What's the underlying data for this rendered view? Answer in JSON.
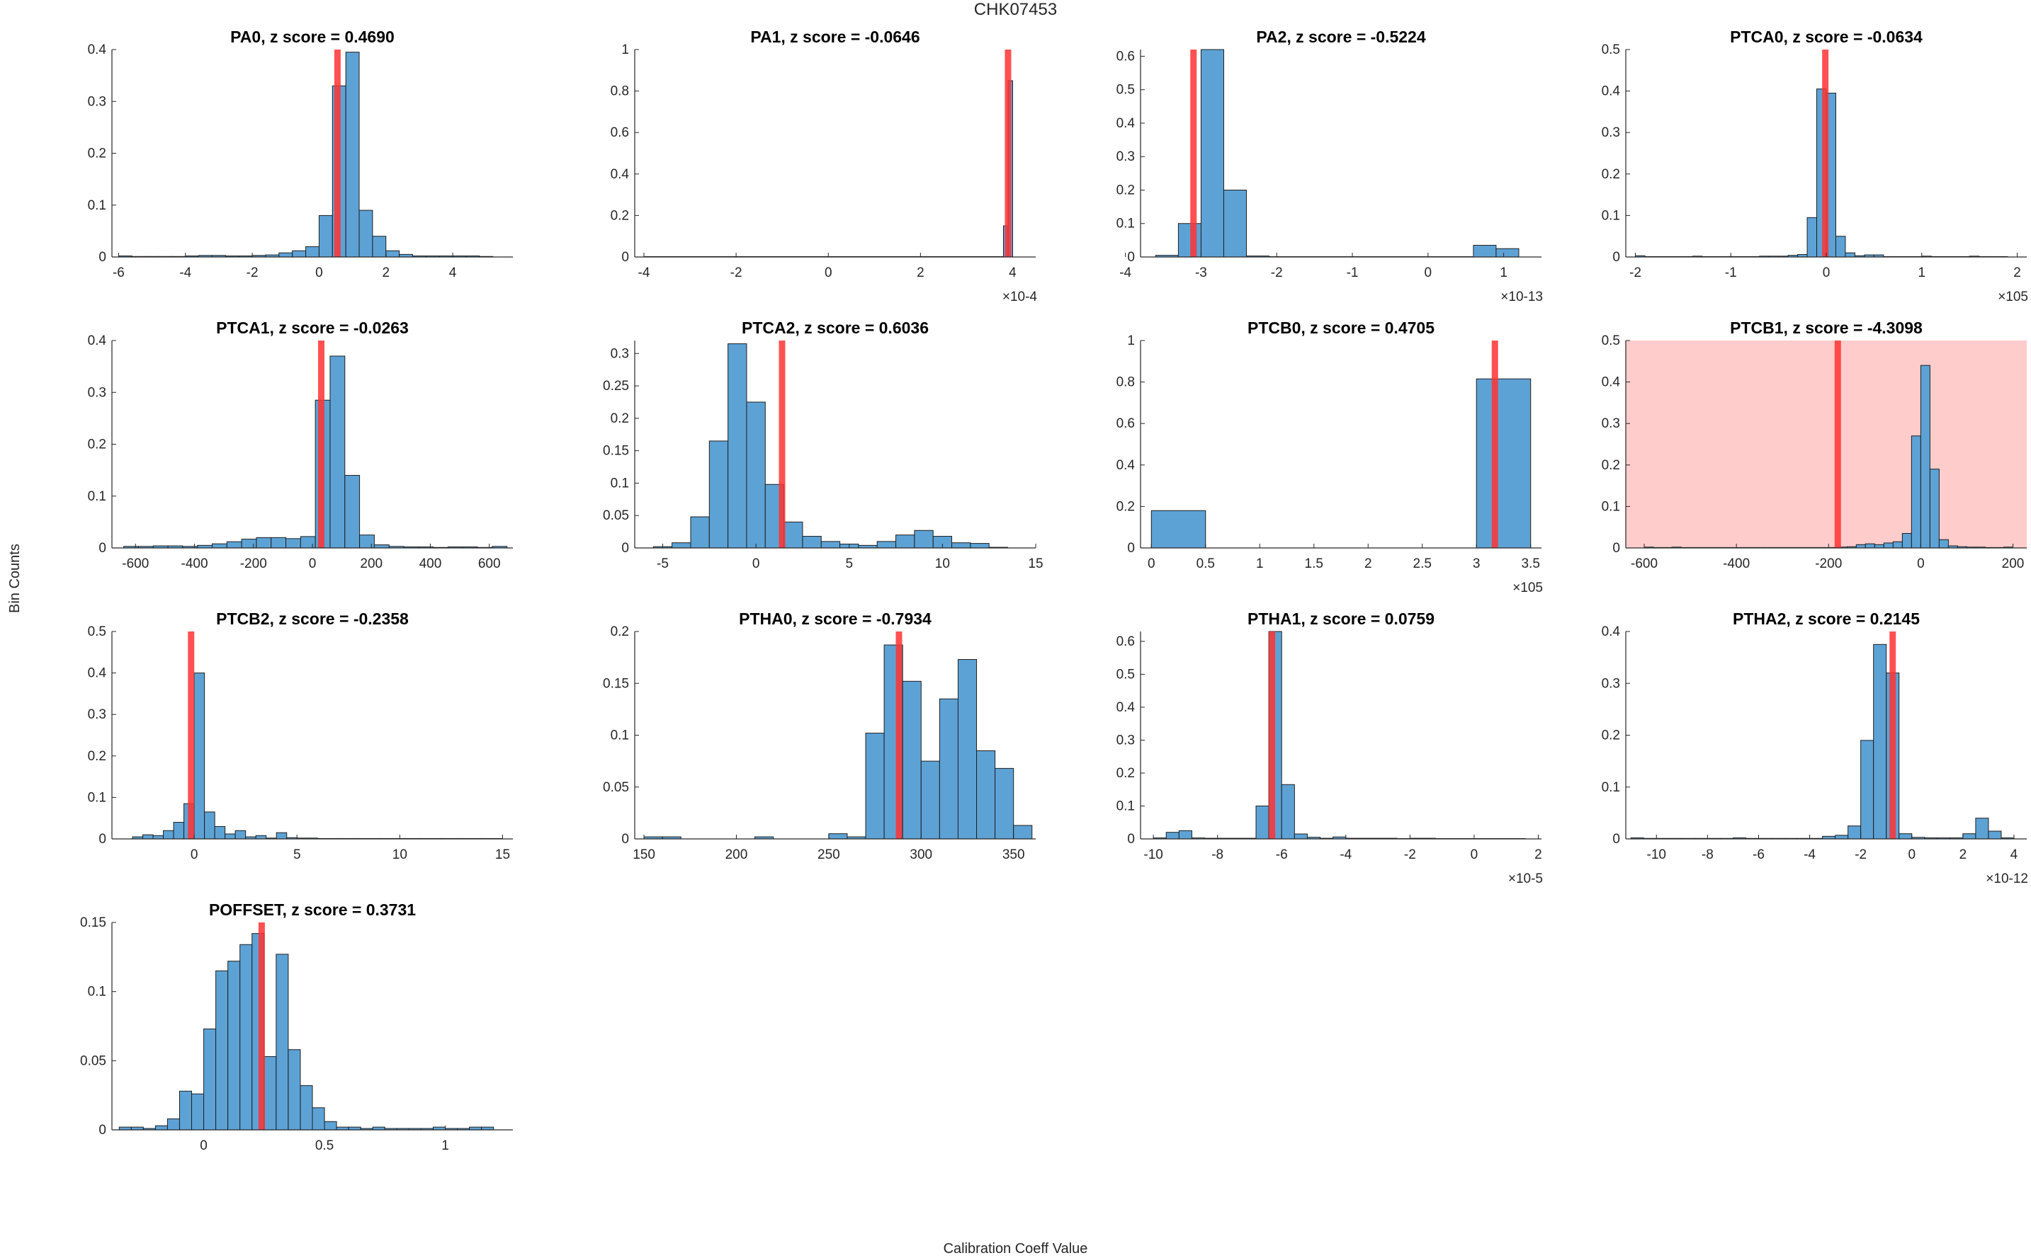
{
  "figure": {
    "title": "CHK07453",
    "xlabel": "Calibration Coeff Value",
    "ylabel": "Bin Counts"
  },
  "colors": {
    "bar_fill": "#5da2d5",
    "bar_edge": "#1f1f1f",
    "marker": "#ff3333",
    "flag_background": "#ffcccc",
    "axis": "#262626"
  },
  "chart_data": [
    {
      "type": "bar",
      "name": "PA0",
      "title": "PA0, z score = 0.4690",
      "xlim": [
        -6.2,
        5.8
      ],
      "ylim": [
        0,
        0.4
      ],
      "xticks": [
        -6,
        -4,
        -2,
        0,
        2,
        4
      ],
      "xtick_labels": [
        "-6",
        "-4",
        "-2",
        "0",
        "2",
        "4"
      ],
      "yticks": [
        0,
        0.1,
        0.2,
        0.3,
        0.4
      ],
      "ytick_labels": [
        "0",
        "0.1",
        "0.2",
        "0.3",
        "0.4"
      ],
      "exponent": "",
      "marker_x": 0.55,
      "flagged": false,
      "bin_edges": [
        -6.0,
        -5.6,
        -5.2,
        -4.8,
        -4.4,
        -4.0,
        -3.6,
        -3.2,
        -2.8,
        -2.4,
        -2.0,
        -1.6,
        -1.2,
        -0.8,
        -0.4,
        0.0,
        0.4,
        0.8,
        1.2,
        1.6,
        2.0,
        2.4,
        2.8,
        3.2,
        3.6,
        4.0,
        4.4,
        4.8,
        5.2
      ],
      "counts": [
        0.002,
        0.001,
        0.001,
        0.001,
        0.001,
        0.002,
        0.003,
        0.003,
        0.002,
        0.002,
        0.003,
        0.004,
        0.008,
        0.012,
        0.02,
        0.08,
        0.33,
        0.395,
        0.09,
        0.04,
        0.012,
        0.005,
        0.002,
        0.002,
        0.002,
        0.002,
        0.002,
        0.001,
        0.002
      ]
    },
    {
      "type": "bar",
      "name": "PA1",
      "title": "PA1, z score = -0.0646",
      "xlim": [
        -4.2,
        4.5
      ],
      "ylim": [
        0,
        1
      ],
      "xticks": [
        -4,
        -2,
        0,
        2,
        4
      ],
      "xtick_labels": [
        "-4",
        "-2",
        "0",
        "2",
        "4"
      ],
      "yticks": [
        0,
        0.2,
        0.4,
        0.6,
        0.8,
        1
      ],
      "ytick_labels": [
        "0",
        "0.2",
        "0.4",
        "0.6",
        "0.8",
        "1"
      ],
      "exponent": "×10-4",
      "marker_x": 3.9,
      "flagged": false,
      "bin_edges": [
        -4.0,
        3.8,
        3.9,
        4.0
      ],
      "counts": [
        0.002,
        0.15,
        0.85
      ]
    },
    {
      "type": "bar",
      "name": "PA2",
      "title": "PA2, z score = -0.5224",
      "xlim": [
        -3.8,
        1.5
      ],
      "ylim": [
        0,
        0.62
      ],
      "xticks": [
        -4,
        -3,
        -2,
        -1,
        0,
        1
      ],
      "xtick_labels": [
        "-4",
        "-3",
        "-2",
        "-1",
        "0",
        "1"
      ],
      "yticks": [
        0,
        0.1,
        0.2,
        0.3,
        0.4,
        0.5,
        0.6
      ],
      "ytick_labels": [
        "0",
        "0.1",
        "0.2",
        "0.3",
        "0.4",
        "0.5",
        "0.6"
      ],
      "exponent": "×10-13",
      "marker_x": -3.1,
      "flagged": false,
      "bin_edges": [
        -3.6,
        -3.3,
        -3.0,
        -2.7,
        -2.4,
        -2.1,
        -1.8,
        -1.5,
        -1.2,
        -0.9,
        -0.6,
        -0.3,
        0.0,
        0.3,
        0.6,
        0.9,
        1.2
      ],
      "counts": [
        0.005,
        0.1,
        0.62,
        0.2,
        0.003,
        0.001,
        0.001,
        0.001,
        0.001,
        0.001,
        0.001,
        0.001,
        0.001,
        0.001,
        0.035,
        0.025
      ]
    },
    {
      "type": "bar",
      "name": "PTCA0",
      "title": "PTCA0, z score = -0.0634",
      "xlim": [
        -2.1,
        2.1
      ],
      "ylim": [
        0,
        0.5
      ],
      "xticks": [
        -2,
        -1,
        0,
        1,
        2
      ],
      "xtick_labels": [
        "-2",
        "-1",
        "0",
        "1",
        "2"
      ],
      "yticks": [
        0,
        0.1,
        0.2,
        0.3,
        0.4,
        0.5
      ],
      "ytick_labels": [
        "0",
        "0.1",
        "0.2",
        "0.3",
        "0.4",
        "0.5"
      ],
      "exponent": "×105",
      "marker_x": -0.01,
      "flagged": false,
      "bin_edges": [
        -2.0,
        -1.9,
        -1.8,
        -1.7,
        -1.6,
        -1.5,
        -1.4,
        -1.3,
        -1.2,
        -1.1,
        -1.0,
        -0.9,
        -0.8,
        -0.7,
        -0.6,
        -0.5,
        -0.4,
        -0.3,
        -0.2,
        -0.1,
        0.0,
        0.1,
        0.2,
        0.3,
        0.4,
        0.5,
        0.6,
        0.7,
        0.8,
        0.9,
        1.0,
        1.1,
        1.2,
        1.3,
        1.4,
        1.5,
        1.6,
        1.7,
        1.8,
        1.9
      ],
      "counts": [
        0.003,
        0.001,
        0.001,
        0.001,
        0.001,
        0.001,
        0.002,
        0.001,
        0.001,
        0.001,
        0.001,
        0.001,
        0.001,
        0.002,
        0.002,
        0.002,
        0.004,
        0.006,
        0.095,
        0.405,
        0.395,
        0.05,
        0.01,
        0.003,
        0.005,
        0.005,
        0.001,
        0.001,
        0.001,
        0.001,
        0.002,
        0.001,
        0.001,
        0.001,
        0.001,
        0.002,
        0.001,
        0.001,
        0.001,
        0.001
      ]
    },
    {
      "type": "bar",
      "name": "PTCA1",
      "title": "PTCA1, z score = -0.0263",
      "xlim": [
        -680,
        680
      ],
      "ylim": [
        0,
        0.4
      ],
      "xticks": [
        -600,
        -400,
        -200,
        0,
        200,
        400,
        600
      ],
      "xtick_labels": [
        "-600",
        "-400",
        "-200",
        "0",
        "200",
        "400",
        "600"
      ],
      "yticks": [
        0,
        0.1,
        0.2,
        0.3,
        0.4
      ],
      "ytick_labels": [
        "0",
        "0.1",
        "0.2",
        "0.3",
        "0.4"
      ],
      "exponent": "",
      "marker_x": 30,
      "flagged": false,
      "bin_edges": [
        -640,
        -590,
        -540,
        -490,
        -440,
        -390,
        -340,
        -290,
        -240,
        -190,
        -140,
        -90,
        -40,
        10,
        60,
        110,
        160,
        210,
        260,
        310,
        360,
        410,
        460,
        510,
        560,
        610,
        660
      ],
      "counts": [
        0.003,
        0.003,
        0.004,
        0.004,
        0.003,
        0.005,
        0.008,
        0.012,
        0.017,
        0.02,
        0.02,
        0.018,
        0.022,
        0.285,
        0.37,
        0.14,
        0.025,
        0.006,
        0.003,
        0.002,
        0.002,
        0.001,
        0.002,
        0.002,
        0.001,
        0.003
      ]
    },
    {
      "type": "bar",
      "name": "PTCA2",
      "title": "PTCA2, z score = 0.6036",
      "xlim": [
        -6.5,
        15
      ],
      "ylim": [
        0,
        0.32
      ],
      "xticks": [
        -5,
        0,
        5,
        10,
        15
      ],
      "xtick_labels": [
        "-5",
        "0",
        "5",
        "10",
        "15"
      ],
      "yticks": [
        0,
        0.05,
        0.1,
        0.15,
        0.2,
        0.25,
        0.3
      ],
      "ytick_labels": [
        "0",
        "0.05",
        "0.1",
        "0.15",
        "0.2",
        "0.25",
        "0.3"
      ],
      "exponent": "",
      "marker_x": 1.4,
      "flagged": false,
      "bin_edges": [
        -5.5,
        -4.5,
        -3.5,
        -2.5,
        -1.5,
        -0.5,
        0.5,
        1.5,
        2.5,
        3.5,
        4.5,
        5.5,
        6.5,
        7.5,
        8.5,
        9.5,
        10.5,
        11.5,
        12.5,
        13.5
      ],
      "counts": [
        0.002,
        0.008,
        0.048,
        0.165,
        0.315,
        0.225,
        0.098,
        0.04,
        0.018,
        0.01,
        0.006,
        0.004,
        0.01,
        0.02,
        0.027,
        0.018,
        0.008,
        0.007,
        0.001
      ]
    },
    {
      "type": "bar",
      "name": "PTCB0",
      "title": "PTCB0, z score = 0.4705",
      "xlim": [
        -0.1,
        3.6
      ],
      "ylim": [
        0,
        1
      ],
      "xticks": [
        0,
        0.5,
        1,
        1.5,
        2,
        2.5,
        3,
        3.5
      ],
      "xtick_labels": [
        "0",
        "0.5",
        "1",
        "1.5",
        "2",
        "2.5",
        "3",
        "3.5"
      ],
      "yticks": [
        0,
        0.2,
        0.4,
        0.6,
        0.8,
        1
      ],
      "ytick_labels": [
        "0",
        "0.2",
        "0.4",
        "0.6",
        "0.8",
        "1"
      ],
      "exponent": "×105",
      "marker_x": 3.17,
      "flagged": false,
      "bin_edges": [
        0.0,
        0.5,
        1.0,
        1.5,
        2.0,
        2.5,
        3.0,
        3.5
      ],
      "counts": [
        0.18,
        0.0,
        0.0,
        0.0,
        0.0,
        0.0,
        0.815
      ]
    },
    {
      "type": "bar",
      "name": "PTCB1",
      "title": "PTCB1, z score = -4.3098",
      "xlim": [
        -640,
        230
      ],
      "ylim": [
        0,
        0.5
      ],
      "xticks": [
        -600,
        -400,
        -200,
        0,
        200
      ],
      "xtick_labels": [
        "-600",
        "-400",
        "-200",
        "0",
        "200"
      ],
      "yticks": [
        0,
        0.1,
        0.2,
        0.3,
        0.4,
        0.5
      ],
      "ytick_labels": [
        "0",
        "0.1",
        "0.2",
        "0.3",
        "0.4",
        "0.5"
      ],
      "exponent": "",
      "marker_x": -180,
      "flagged": true,
      "bin_edges": [
        -600,
        -580,
        -560,
        -540,
        -520,
        -500,
        -480,
        -460,
        -440,
        -420,
        -400,
        -380,
        -360,
        -340,
        -320,
        -300,
        -280,
        -260,
        -240,
        -220,
        -200,
        -180,
        -160,
        -140,
        -120,
        -100,
        -80,
        -60,
        -40,
        -20,
        0,
        20,
        40,
        60,
        80,
        100,
        120,
        140,
        160,
        180,
        200
      ],
      "counts": [
        0.002,
        0.001,
        0.001,
        0.002,
        0.001,
        0.001,
        0.001,
        0.001,
        0.001,
        0.001,
        0.001,
        0.001,
        0.001,
        0.001,
        0.001,
        0.001,
        0.001,
        0.001,
        0.001,
        0.001,
        0.001,
        0.002,
        0.003,
        0.008,
        0.01,
        0.008,
        0.012,
        0.015,
        0.035,
        0.27,
        0.44,
        0.19,
        0.02,
        0.005,
        0.003,
        0.002,
        0.002,
        0.001,
        0.001,
        0.002
      ]
    },
    {
      "type": "bar",
      "name": "PTCB2",
      "title": "PTCB2, z score = -0.2358",
      "xlim": [
        -4,
        15.5
      ],
      "ylim": [
        0,
        0.5
      ],
      "xticks": [
        0,
        5,
        10,
        15
      ],
      "xtick_labels": [
        "0",
        "5",
        "10",
        "15"
      ],
      "yticks": [
        0,
        0.1,
        0.2,
        0.3,
        0.4,
        0.5
      ],
      "ytick_labels": [
        "0",
        "0.1",
        "0.2",
        "0.3",
        "0.4",
        "0.5"
      ],
      "exponent": "",
      "marker_x": -0.15,
      "flagged": false,
      "bin_edges": [
        -3.0,
        -2.5,
        -2.0,
        -1.5,
        -1.0,
        -0.5,
        0.0,
        0.5,
        1.0,
        1.5,
        2.0,
        2.5,
        3.0,
        3.5,
        4.0,
        4.5,
        5.0,
        6.0,
        7.0,
        8.0,
        9.0,
        10.0,
        11.0,
        12.0,
        13.0,
        14.0,
        15.0
      ],
      "counts": [
        0.005,
        0.01,
        0.008,
        0.02,
        0.04,
        0.085,
        0.4,
        0.065,
        0.03,
        0.012,
        0.02,
        0.005,
        0.008,
        0.002,
        0.015,
        0.003,
        0.002,
        0.001,
        0.001,
        0.001,
        0.001,
        0.001,
        0.001,
        0.001,
        0.001,
        0.001
      ]
    },
    {
      "type": "bar",
      "name": "PTHA0",
      "title": "PTHA0, z score = -0.7934",
      "xlim": [
        145,
        362
      ],
      "ylim": [
        0,
        0.2
      ],
      "xticks": [
        150,
        200,
        250,
        300,
        350
      ],
      "xtick_labels": [
        "150",
        "200",
        "250",
        "300",
        "350"
      ],
      "yticks": [
        0,
        0.05,
        0.1,
        0.15,
        0.2
      ],
      "ytick_labels": [
        "0",
        "0.05",
        "0.1",
        "0.15",
        "0.2"
      ],
      "exponent": "",
      "marker_x": 288,
      "flagged": false,
      "bin_edges": [
        150,
        160,
        170,
        180,
        190,
        200,
        210,
        220,
        230,
        240,
        250,
        260,
        270,
        280,
        290,
        300,
        310,
        320,
        330,
        340,
        350,
        360
      ],
      "counts": [
        0.002,
        0.002,
        0.0,
        0.0,
        0.0,
        0.0,
        0.002,
        0.0,
        0.0,
        0.0,
        0.005,
        0.002,
        0.102,
        0.187,
        0.152,
        0.075,
        0.135,
        0.173,
        0.085,
        0.068,
        0.013
      ]
    },
    {
      "type": "bar",
      "name": "PTHA1",
      "title": "PTHA1, z score = 0.0759",
      "xlim": [
        -10.4,
        2.1
      ],
      "ylim": [
        0,
        0.63
      ],
      "xticks": [
        -10,
        -8,
        -6,
        -4,
        -2,
        0,
        2
      ],
      "xtick_labels": [
        "-10",
        "-8",
        "-6",
        "-4",
        "-2",
        "0",
        "2"
      ],
      "yticks": [
        0,
        0.1,
        0.2,
        0.3,
        0.4,
        0.5,
        0.6
      ],
      "ytick_labels": [
        "0",
        "0.1",
        "0.2",
        "0.3",
        "0.4",
        "0.5",
        "0.6"
      ],
      "exponent": "×10-5",
      "marker_x": -6.3,
      "flagged": false,
      "bin_edges": [
        -10.0,
        -9.6,
        -9.2,
        -8.8,
        -8.4,
        -8.0,
        -7.6,
        -7.2,
        -6.8,
        -6.4,
        -6.0,
        -5.6,
        -5.2,
        -4.8,
        -4.4,
        -4.0,
        -3.6,
        -3.2,
        -2.8,
        -2.4,
        -2.0,
        -1.6,
        -1.2,
        -0.8,
        -0.4,
        0.0,
        0.4,
        0.8,
        1.2,
        1.6
      ],
      "counts": [
        0.003,
        0.02,
        0.025,
        0.003,
        0.002,
        0.002,
        0.002,
        0.002,
        0.1,
        0.63,
        0.165,
        0.015,
        0.005,
        0.002,
        0.006,
        0.002,
        0.002,
        0.002,
        0.002,
        0.001,
        0.002,
        0.002,
        0.001,
        0.001,
        0.001,
        0.001,
        0.001,
        0.001,
        0.001
      ]
    },
    {
      "type": "bar",
      "name": "PTHA2",
      "title": "PTHA2, z score = 0.2145",
      "xlim": [
        -11.2,
        4.5
      ],
      "ylim": [
        0,
        0.4
      ],
      "xticks": [
        -10,
        -8,
        -6,
        -4,
        -2,
        0,
        2,
        4
      ],
      "xtick_labels": [
        "-10",
        "-8",
        "-6",
        "-4",
        "-2",
        "0",
        "2",
        "4"
      ],
      "yticks": [
        0,
        0.1,
        0.2,
        0.3,
        0.4
      ],
      "ytick_labels": [
        "0",
        "0.1",
        "0.2",
        "0.3",
        "0.4"
      ],
      "exponent": "×10-12",
      "marker_x": -0.75,
      "flagged": false,
      "bin_edges": [
        -11.0,
        -10.5,
        -10.0,
        -9.5,
        -9.0,
        -8.5,
        -8.0,
        -7.5,
        -7.0,
        -6.5,
        -6.0,
        -5.5,
        -5.0,
        -4.5,
        -4.0,
        -3.5,
        -3.0,
        -2.5,
        -2.0,
        -1.5,
        -1.0,
        -0.5,
        0.0,
        0.5,
        1.0,
        1.5,
        2.0,
        2.5,
        3.0,
        3.5,
        4.0
      ],
      "counts": [
        0.002,
        0.001,
        0.001,
        0.001,
        0.001,
        0.001,
        0.001,
        0.001,
        0.002,
        0.001,
        0.001,
        0.001,
        0.001,
        0.001,
        0.001,
        0.005,
        0.007,
        0.025,
        0.19,
        0.375,
        0.32,
        0.01,
        0.003,
        0.002,
        0.002,
        0.002,
        0.01,
        0.04,
        0.015,
        0.002
      ]
    },
    {
      "type": "bar",
      "name": "POFFSET",
      "title": "POFFSET, z score = 0.3731",
      "xlim": [
        -0.38,
        1.28
      ],
      "ylim": [
        0,
        0.15
      ],
      "xticks": [
        0,
        0.5,
        1
      ],
      "xtick_labels": [
        "0",
        "0.5",
        "1"
      ],
      "yticks": [
        0,
        0.05,
        0.1,
        0.15
      ],
      "ytick_labels": [
        "0",
        "0.05",
        "0.1",
        "0.15"
      ],
      "exponent": "",
      "marker_x": 0.24,
      "flagged": false,
      "bin_edges": [
        -0.35,
        -0.3,
        -0.25,
        -0.2,
        -0.15,
        -0.1,
        -0.05,
        0.0,
        0.05,
        0.1,
        0.15,
        0.2,
        0.25,
        0.3,
        0.35,
        0.4,
        0.45,
        0.5,
        0.55,
        0.6,
        0.65,
        0.7,
        0.75,
        0.8,
        0.85,
        0.9,
        0.95,
        1.0,
        1.05,
        1.1,
        1.15,
        1.2
      ],
      "counts": [
        0.002,
        0.002,
        0.001,
        0.003,
        0.008,
        0.028,
        0.026,
        0.073,
        0.115,
        0.122,
        0.134,
        0.142,
        0.053,
        0.127,
        0.058,
        0.032,
        0.016,
        0.006,
        0.002,
        0.002,
        0.001,
        0.002,
        0.001,
        0.001,
        0.001,
        0.001,
        0.002,
        0.001,
        0.001,
        0.002,
        0.002
      ]
    }
  ]
}
